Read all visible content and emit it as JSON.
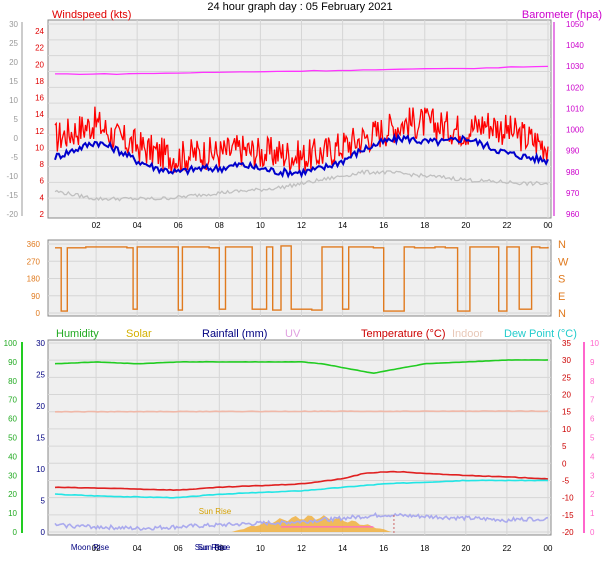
{
  "title": "24 hour graph day : 05 February 2021",
  "chart_data": [
    {
      "type": "line",
      "panel": "wind",
      "left_label": "Windspeed (kts)",
      "right_label": "Barometer (hpa)",
      "left_outer_ticks": [
        "30",
        "25",
        "20",
        "15",
        "10",
        "5",
        "0",
        "-5",
        "-10",
        "-15",
        "-20"
      ],
      "left_inner_ticks": [
        "24",
        "22",
        "20",
        "18",
        "16",
        "14",
        "12",
        "10",
        "8",
        "6",
        "4",
        "2"
      ],
      "right_ticks": [
        "1050",
        "1040",
        "1030",
        "1020",
        "1010",
        "1000",
        "990",
        "980",
        "970",
        "960"
      ],
      "x_ticks": [
        "02",
        "04",
        "06",
        "08",
        "10",
        "12",
        "14",
        "16",
        "18",
        "20",
        "22",
        "00"
      ],
      "ylim": [
        0,
        25
      ],
      "right_ylim": [
        955,
        1050
      ],
      "series": [
        {
          "color": "#ff0000",
          "x": [
            0,
            1,
            2,
            3,
            4,
            5,
            6,
            7,
            8,
            9,
            10,
            11,
            12,
            13,
            14,
            15,
            16,
            17,
            18,
            19,
            20,
            21,
            22,
            23,
            24
          ],
          "values": [
            10,
            11,
            12,
            10,
            9,
            8,
            7.5,
            8,
            8,
            8.5,
            8,
            8,
            7.5,
            8,
            9,
            10,
            11,
            12,
            12,
            11.5,
            11,
            12,
            11,
            10,
            9
          ]
        },
        {
          "color": "#0000cc",
          "x": [
            0,
            1,
            2,
            3,
            4,
            5,
            6,
            7,
            8,
            9,
            10,
            11,
            12,
            13,
            14,
            15,
            16,
            17,
            18,
            19,
            20,
            21,
            22,
            23,
            24
          ],
          "values": [
            7.5,
            8.5,
            9.5,
            8.5,
            7,
            6,
            5.5,
            6,
            6,
            6.5,
            6,
            5.5,
            5.5,
            6,
            7,
            8.5,
            9.5,
            10,
            9.5,
            9.5,
            10,
            9,
            8,
            7.5,
            7
          ]
        },
        {
          "color": "#c0c0c0",
          "x": [
            0,
            1,
            2,
            3,
            4,
            5,
            6,
            7,
            8,
            9,
            10,
            11,
            12,
            13,
            14,
            15,
            16,
            17,
            18,
            19,
            20,
            21,
            22,
            23,
            24
          ],
          "values": [
            3,
            2.5,
            2,
            2,
            2,
            2,
            2.2,
            2.5,
            2.8,
            3,
            3.2,
            3.5,
            4,
            4.5,
            5,
            5.5,
            5.5,
            5.3,
            5,
            4.8,
            4.5,
            4.3,
            4.2,
            4,
            4
          ]
        },
        {
          "color": "#ff33ff",
          "axis": "right",
          "x": [
            0,
            3,
            6,
            9,
            12,
            15,
            18,
            21,
            24
          ],
          "values": [
            1025,
            1025,
            1025.5,
            1026,
            1026.5,
            1027,
            1027.5,
            1028,
            1029
          ]
        }
      ]
    },
    {
      "type": "line",
      "panel": "direction",
      "left_ticks": [
        "360",
        "270",
        "180",
        "90",
        "0"
      ],
      "right_ticks": [
        "N",
        "W",
        "S",
        "E",
        "N"
      ],
      "ylim": [
        0,
        360
      ],
      "series": [
        {
          "color": "#e07a1e",
          "x": [
            0,
            0.3,
            0.6,
            1.5,
            2.5,
            3.5,
            3.8,
            4.0,
            5.5,
            6.0,
            6.2,
            7.5,
            8.0,
            8.3,
            9.2,
            9.6,
            10.3,
            10.6,
            11.0,
            11.5,
            12.0,
            12.5,
            13.0,
            13.8,
            14.0,
            14.3,
            15.5,
            16.0,
            17.0,
            17.5,
            18.5,
            19.0,
            19.6,
            20.2,
            21.0,
            21.6,
            22.0,
            22.6,
            23.2,
            23.6,
            24
          ],
          "values": [
            340,
            10,
            340,
            345,
            345,
            340,
            20,
            345,
            345,
            15,
            345,
            340,
            20,
            345,
            345,
            20,
            345,
            15,
            350,
            20,
            20,
            15,
            345,
            345,
            20,
            345,
            340,
            10,
            345,
            340,
            345,
            340,
            10,
            345,
            345,
            10,
            345,
            20,
            345,
            340,
            345
          ]
        }
      ]
    },
    {
      "type": "line",
      "panel": "thermo",
      "labels": [
        "Humidity",
        "Solar",
        "Rainfall (mm)",
        "UV",
        "Temperature (°C)",
        "Indoor",
        "Dew Point (°C)"
      ],
      "left_outer_ticks": [
        "100",
        "90",
        "80",
        "70",
        "60",
        "50",
        "40",
        "30",
        "20",
        "10",
        "0"
      ],
      "left_inner_ticks": [
        "30",
        "25",
        "20",
        "15",
        "10",
        "5",
        "0"
      ],
      "right_ticks": [
        "35",
        "30",
        "25",
        "20",
        "15",
        "10",
        "5",
        "0",
        "-5",
        "-10",
        "-15",
        "-20"
      ],
      "right_outer_ticks": [
        "10",
        "9",
        "8",
        "7",
        "6",
        "5",
        "4",
        "3",
        "2",
        "1",
        "0"
      ],
      "x_ticks": [
        "02",
        "04",
        "06",
        "08",
        "10",
        "12",
        "14",
        "16",
        "18",
        "20",
        "22",
        "00"
      ],
      "annotations": [
        "Moon Rise",
        "Sun Rise",
        "Sun Rise",
        "Sun Rise"
      ],
      "ylim": [
        -20,
        35
      ],
      "series": [
        {
          "name": "Humidity",
          "color": "#22cc22",
          "x": [
            0,
            2,
            4,
            6,
            8,
            10,
            12,
            13,
            14,
            15,
            15.5,
            16,
            17,
            18,
            20,
            22,
            24
          ],
          "values": [
            89,
            90,
            89,
            90,
            90,
            90,
            90,
            89,
            87,
            85,
            84,
            85,
            87,
            89,
            90,
            91,
            91
          ]
        },
        {
          "name": "Temperature (°C)",
          "color": "#e02020",
          "x": [
            0,
            2,
            4,
            6,
            8,
            10,
            12,
            14,
            15,
            16,
            17,
            18,
            20,
            22,
            24
          ],
          "values": [
            -7,
            -7.2,
            -7.5,
            -7.8,
            -7,
            -6.5,
            -6,
            -4.5,
            -3,
            -2.5,
            -2.5,
            -3,
            -3.5,
            -4,
            -4.5
          ]
        },
        {
          "name": "Dew Point (°C)",
          "color": "#22e5e5",
          "x": [
            0,
            2,
            4,
            6,
            8,
            10,
            12,
            14,
            16,
            18,
            20,
            22,
            24
          ],
          "values": [
            -9,
            -9.5,
            -9.8,
            -10,
            -9,
            -8.5,
            -8,
            -7,
            -6,
            -5.5,
            -5,
            -5,
            -5
          ]
        },
        {
          "name": "Indoor",
          "color": "#f0b8a8",
          "x": [
            0,
            24
          ],
          "values": [
            15,
            15.2
          ]
        },
        {
          "color": "#aaaaee",
          "x": [
            0,
            2,
            4,
            6,
            8,
            10,
            12,
            14,
            16,
            18,
            20,
            22,
            24
          ],
          "values": [
            -18,
            -18.5,
            -19,
            -18.5,
            -18,
            -17.5,
            -17,
            -16,
            -15,
            -15.5,
            -16,
            -16.5,
            -16
          ]
        }
      ]
    }
  ]
}
